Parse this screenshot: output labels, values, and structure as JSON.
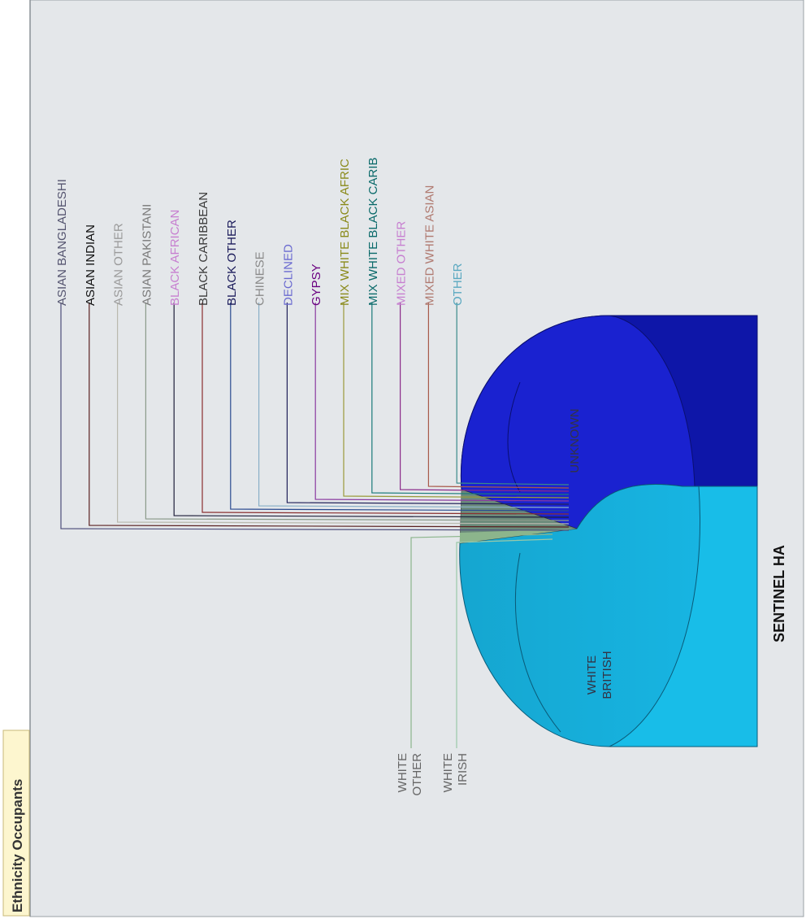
{
  "tab": {
    "label": "Ethnicity Occupants"
  },
  "chart_data": {
    "type": "pie",
    "style": "3d",
    "title": "SENTINEL HA",
    "slices": [
      {
        "label": "ASIAN BANGLADESHI",
        "value": 0.3,
        "color": "#4d4d7a"
      },
      {
        "label": "ASIAN INDIAN",
        "value": 0.3,
        "color": "#5a2020"
      },
      {
        "label": "ASIAN OTHER",
        "value": 0.3,
        "color": "#b9b9ae"
      },
      {
        "label": "ASIAN PAKISTANI",
        "value": 0.3,
        "color": "#8a9a8a"
      },
      {
        "label": "BLACK AFRICAN",
        "value": 0.3,
        "color": "#1f1f3a"
      },
      {
        "label": "BLACK CARIBBEAN",
        "value": 0.3,
        "color": "#8a3030"
      },
      {
        "label": "BLACK OTHER",
        "value": 0.3,
        "color": "#2a4a90"
      },
      {
        "label": "CHINESE",
        "value": 0.3,
        "color": "#8ab0c8"
      },
      {
        "label": "DECLINED",
        "value": 0.3,
        "color": "#22225a"
      },
      {
        "label": "GYPSY",
        "value": 0.3,
        "color": "#8a3aa0"
      },
      {
        "label": "MIX WHITE BLACK AFRIC",
        "value": 0.3,
        "color": "#9a9a3a"
      },
      {
        "label": "MIX WHITE BLACK CARIB",
        "value": 0.3,
        "color": "#1a7a7a"
      },
      {
        "label": "MIXED OTHER",
        "value": 0.3,
        "color": "#8a2a8a"
      },
      {
        "label": "MIXED WHITE ASIAN",
        "value": 0.3,
        "color": "#a85a4a"
      },
      {
        "label": "OTHER",
        "value": 0.3,
        "color": "#3a8a8a"
      },
      {
        "label": "UNKNOWN",
        "value": 48,
        "color": "#0b16cf"
      },
      {
        "label": "WHITE BRITISH",
        "value": 46,
        "color": "#13a7d2"
      },
      {
        "label": "WHITE IRISH",
        "value": 0.5,
        "color": "#9ac9a9"
      },
      {
        "label": "WHITE OTHER",
        "value": 1,
        "color": "#8cb58c"
      }
    ],
    "label_colors": {
      "ASIAN BANGLADESHI": "#555570",
      "ASIAN INDIAN": "#111111",
      "ASIAN OTHER": "#9a9a9a",
      "ASIAN PAKISTANI": "#7a7a7a",
      "BLACK AFRICAN": "#c77fd0",
      "BLACK CARIBBEAN": "#3a3a3a",
      "BLACK OTHER": "#1a1a5a",
      "CHINESE": "#8a8a8a",
      "DECLINED": "#6a6ad0",
      "GYPSY": "#6a0080",
      "MIX WHITE BLACK AFRIC": "#8a8a1a",
      "MIX WHITE BLACK CARIB": "#0a6a6a",
      "MIXED OTHER": "#c77fd0",
      "MIXED WHITE ASIAN": "#b07a70",
      "OTHER": "#5aa8c0",
      "UNKNOWN": "#333344",
      "WHITE BRITISH": "#333344",
      "WHITE IRISH": "#666666",
      "WHITE OTHER": "#666666"
    },
    "legend": "none"
  }
}
